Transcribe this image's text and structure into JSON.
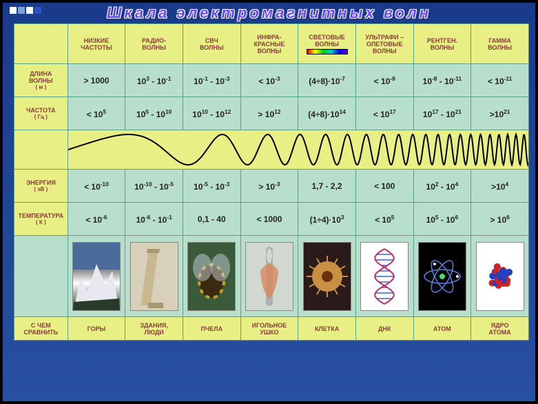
{
  "title": "Шкала электромагнитных волн",
  "corner_colors": [
    "#ffffff",
    "#7aa0e0",
    "#ffffff",
    "#3050c0"
  ],
  "columns": [
    {
      "label": "НИЗКИЕ ЧАСТОТЫ",
      "spectrum": false
    },
    {
      "label": "РАДИО-\nВОЛНЫ",
      "spectrum": false
    },
    {
      "label": "СВЧ\nВОЛНЫ",
      "spectrum": false
    },
    {
      "label": "ИНФРА-\nКРАСНЫЕ\nВОЛНЫ",
      "spectrum": false
    },
    {
      "label": "СВЕТОВЫЕ\nВОЛНЫ",
      "spectrum": true
    },
    {
      "label": "УЛЬТРАФИ –\nОЛЕТОВЫЕ\nВОЛНЫ",
      "spectrum": false
    },
    {
      "label": "РЕНТГЕН.\nВОЛНЫ",
      "spectrum": false
    },
    {
      "label": "ГАММА\nВОЛНЫ",
      "spectrum": false
    }
  ],
  "rows": [
    {
      "label": "ДЛИНА\nВОЛНЫ",
      "unit": "( м )",
      "cells": [
        "> 1000",
        "10^3 - 10^-1",
        "10^-1 - 10^-3",
        "< 10^-3",
        "(4÷8)·10^-7",
        "< 10^-8",
        "10^-8 - 10^-11",
        "< 10^-11"
      ]
    },
    {
      "label": "ЧАСТОТА",
      "unit": "( Гц )",
      "cells": [
        "< 10^5",
        "10^5 - 10^10",
        "10^10 - 10^12",
        "> 10^12",
        "(4÷8)·10^14",
        "< 10^17",
        "10^17 - 10^21",
        ">10^21"
      ]
    },
    {
      "label": "ЭНЕРГИЯ",
      "unit": "( эВ )",
      "cells": [
        "< 10^-10",
        "10^-10 - 10^-5",
        "10^-5 - 10^-3",
        "> 10^-3",
        "1,7 - 2,2",
        "< 100",
        "10^2 - 10^4",
        ">10^4"
      ]
    },
    {
      "label": "ТЕМПЕРАТУРА",
      "unit": "( К )",
      "cells": [
        "< 10^-6",
        "10^-6 - 10^-1",
        "0,1 - 40",
        "< 1000",
        "(1÷4)·10^3",
        "< 10^5",
        "10^5 - 10^6",
        "> 10^6"
      ]
    }
  ],
  "compare_label": "С ЧЕМ\nСРАВНИТЬ",
  "compare": [
    "ГОРЫ",
    "ЗДАНИЯ,\nЛЮДИ",
    "ПЧЕЛА",
    "ИГОЛЬНОЕ\nУШКО",
    "КЛЕТКА",
    "ДНК",
    "АТОМ",
    "ЯДРО\nАТОМА"
  ],
  "images": [
    {
      "name": "mountains",
      "bg": "linear-gradient(to bottom,#4a6a9a 0%,#4a6a9a 40%,#888 40%,#fff 60%,#2a3a2a 100%)"
    },
    {
      "name": "tower",
      "bg": "#d8d0b8"
    },
    {
      "name": "bee",
      "bg": "#3a5a3a"
    },
    {
      "name": "needle",
      "bg": "#d0d8d0"
    },
    {
      "name": "cell",
      "bg": "#2a1a1a"
    },
    {
      "name": "dna",
      "bg": "#ffffff"
    },
    {
      "name": "atom",
      "bg": "#000000"
    },
    {
      "name": "nucleus",
      "bg": "#ffffff"
    }
  ],
  "wave": {
    "color": "#000000",
    "stroke_width": 2
  },
  "palette": {
    "header_bg": "#e8f085",
    "cell_bg": "#b8decc",
    "border": "#5aa088",
    "header_text": "#8a3a3a"
  }
}
